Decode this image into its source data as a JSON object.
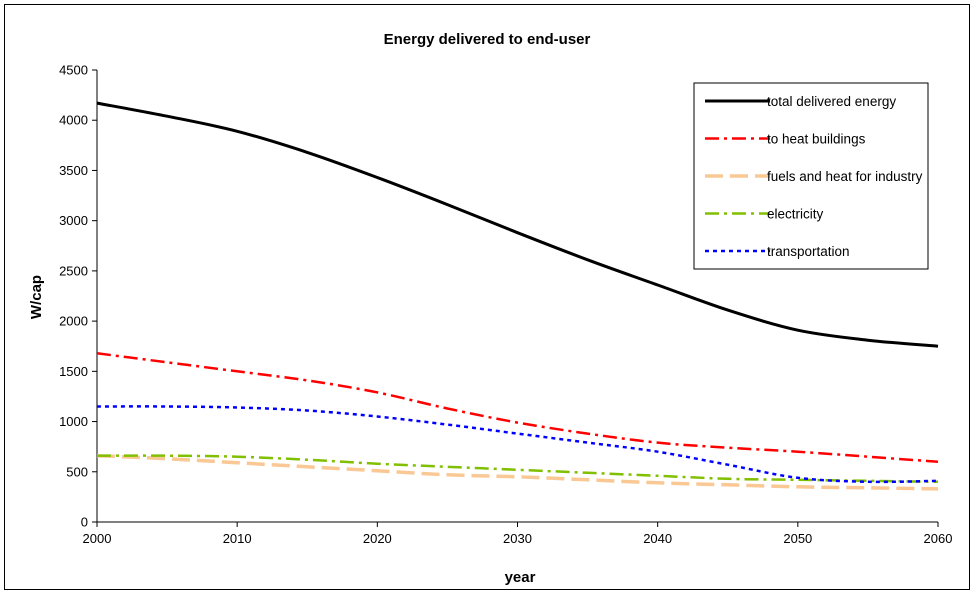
{
  "chart_data": {
    "type": "line",
    "title": "Energy delivered to end-user",
    "xlabel": "year",
    "ylabel": "W/cap",
    "xlim": [
      2000,
      2060
    ],
    "ylim": [
      0,
      4500
    ],
    "xticks": [
      2000,
      2010,
      2020,
      2030,
      2040,
      2050,
      2060
    ],
    "yticks": [
      0,
      500,
      1000,
      1500,
      2000,
      2500,
      3000,
      3500,
      4000,
      4500
    ],
    "grid": false,
    "legend": "top-right",
    "x": [
      2000,
      2005,
      2010,
      2015,
      2020,
      2025,
      2030,
      2035,
      2040,
      2045,
      2050,
      2055,
      2060
    ],
    "series": [
      {
        "name": "total delivered energy",
        "color": "#000000",
        "dash": "solid",
        "values": [
          4170,
          4040,
          3890,
          3680,
          3430,
          3160,
          2880,
          2610,
          2360,
          2110,
          1910,
          1810,
          1750
        ]
      },
      {
        "name": "to heat buildings",
        "color": "#ff0000",
        "dash": "dashdot",
        "values": [
          1680,
          1590,
          1500,
          1410,
          1290,
          1130,
          990,
          880,
          790,
          740,
          700,
          650,
          600
        ]
      },
      {
        "name": "fuels and heat for industry",
        "color": "#f9c894",
        "dash": "longdash",
        "values": [
          660,
          630,
          590,
          550,
          510,
          470,
          450,
          420,
          390,
          370,
          350,
          340,
          330
        ]
      },
      {
        "name": "electricity",
        "color": "#80c000",
        "dash": "dashdot",
        "values": [
          660,
          660,
          650,
          620,
          580,
          550,
          520,
          490,
          460,
          430,
          420,
          410,
          400
        ]
      },
      {
        "name": "transportation",
        "color": "#0000ff",
        "dash": "dotted",
        "values": [
          1150,
          1150,
          1140,
          1110,
          1050,
          970,
          880,
          790,
          700,
          570,
          440,
          400,
          410
        ]
      }
    ]
  }
}
